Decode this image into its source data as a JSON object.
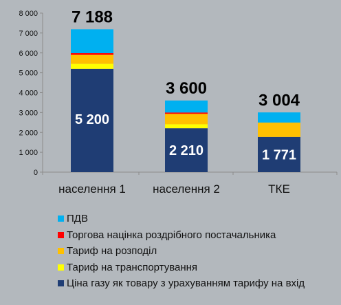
{
  "chart_data": {
    "type": "bar",
    "stacked": true,
    "categories": [
      "населення 1",
      "населення 2",
      "ТКЕ"
    ],
    "ylim": [
      0,
      8000
    ],
    "yticks": [
      0,
      1000,
      2000,
      3000,
      4000,
      5000,
      6000,
      7000,
      8000
    ],
    "ytick_labels": [
      "0",
      "1 000",
      "2 000",
      "3 000",
      "4 000",
      "5 000",
      "6 000",
      "7 000",
      "8 000"
    ],
    "grid": false,
    "legend_position": "bottom",
    "series": [
      {
        "name": "Ціна газу як товару з урахуванням тарифу на вхід",
        "color": "#1f3d74",
        "values": [
          5200,
          2210,
          1771
        ]
      },
      {
        "name": "Тариф на транспортування",
        "color": "#ffff00",
        "values": [
          250,
          200,
          0
        ]
      },
      {
        "name": "Тариф на розподіл",
        "color": "#ffc000",
        "values": [
          450,
          520,
          720
        ]
      },
      {
        "name": "Торгова націнка роздрібного постачальника",
        "color": "#ff0000",
        "values": [
          90,
          70,
          0
        ]
      },
      {
        "name": "ПДВ",
        "color": "#00b0f0",
        "values": [
          1198,
          600,
          513
        ]
      }
    ],
    "totals": [
      "7 188",
      "3 600",
      "3 004"
    ],
    "base_labels": [
      "5 200",
      "2 210",
      "1 771"
    ]
  },
  "legend_order": [
    4,
    3,
    2,
    1,
    0
  ]
}
